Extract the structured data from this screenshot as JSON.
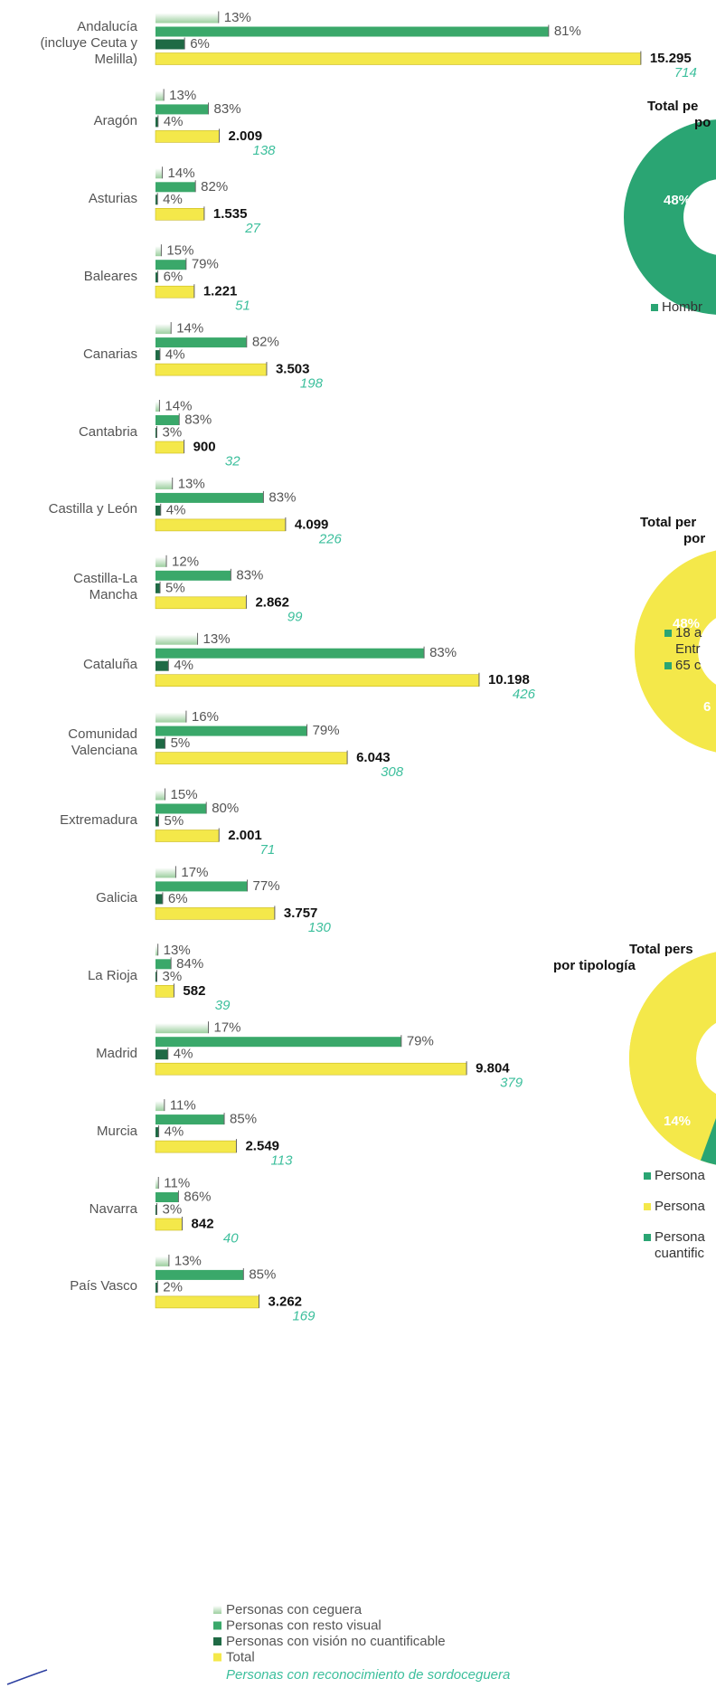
{
  "chart_data": {
    "type": "bar",
    "orientation": "horizontal",
    "categories": [
      "Andalucía\n(incluye Ceuta y\nMelilla)",
      "Aragón",
      "Asturias",
      "Baleares",
      "Canarias",
      "Cantabria",
      "Castilla y León",
      "Castilla-La\nMancha",
      "Cataluña",
      "Comunidad\nValenciana",
      "Extremadura",
      "Galicia",
      "La Rioja",
      "Madrid",
      "Murcia",
      "Navarra",
      "País Vasco"
    ],
    "series": [
      {
        "name": "Personas con ceguera",
        "color": "#c3e3c4",
        "unit": "percent_of_total",
        "values": [
          13,
          13,
          14,
          15,
          14,
          14,
          13,
          12,
          13,
          16,
          15,
          17,
          13,
          17,
          11,
          11,
          13
        ],
        "value_labels": [
          "13%",
          "13%",
          "14%",
          "15%",
          "14%",
          "14%",
          "13%",
          "12%",
          "13%",
          "16%",
          "15%",
          "17%",
          "13%",
          "17%",
          "11%",
          "11%",
          "13%"
        ]
      },
      {
        "name": "Personas con resto visual",
        "color": "#3aa86a",
        "unit": "percent_of_total",
        "values": [
          81,
          83,
          82,
          79,
          82,
          83,
          83,
          83,
          83,
          79,
          80,
          77,
          84,
          79,
          85,
          86,
          85
        ],
        "value_labels": [
          "81%",
          "83%",
          "82%",
          "79%",
          "82%",
          "83%",
          "83%",
          "83%",
          "83%",
          "79%",
          "80%",
          "77%",
          "84%",
          "79%",
          "85%",
          "86%",
          "85%"
        ]
      },
      {
        "name": "Personas con visión no cuantificable",
        "color": "#1f6a45",
        "unit": "percent_of_total",
        "values": [
          6,
          4,
          4,
          6,
          4,
          3,
          4,
          5,
          4,
          5,
          5,
          6,
          3,
          4,
          4,
          3,
          2
        ],
        "value_labels": [
          "6%",
          "4%",
          "4%",
          "6%",
          "4%",
          "3%",
          "4%",
          "5%",
          "4%",
          "5%",
          "5%",
          "6%",
          "3%",
          "4%",
          "4%",
          "3%",
          "2%"
        ]
      },
      {
        "name": "Total",
        "color": "#f4e84a",
        "values": [
          15295,
          2009,
          1535,
          1221,
          3503,
          900,
          4099,
          2862,
          10198,
          6043,
          2001,
          3757,
          582,
          9804,
          2549,
          842,
          3262
        ],
        "value_labels": [
          "15.295",
          "2.009",
          "1.535",
          "1.221",
          "3.503",
          "900",
          "4.099",
          "2.862",
          "10.198",
          "6.043",
          "2.001",
          "3.757",
          "582",
          "9.804",
          "2.549",
          "842",
          "3.262"
        ]
      }
    ],
    "recognized": {
      "name": "Personas con reconocimiento de sordoceguera",
      "color": "#3cbf9c",
      "values": [
        714,
        138,
        27,
        51,
        198,
        32,
        226,
        99,
        426,
        308,
        71,
        130,
        39,
        379,
        113,
        40,
        169
      ]
    },
    "side_panels": [
      {
        "title_lines": [
          "Total pe",
          "po"
        ],
        "labels": [
          "48%"
        ],
        "legend": [
          "Hombr"
        ]
      },
      {
        "title_lines": [
          "Total per",
          "por"
        ],
        "labels": [
          "48%",
          "6"
        ],
        "legend": [
          "18 a",
          "Entr",
          "65 c"
        ]
      },
      {
        "title_lines": [
          "Total pers",
          "por tipología"
        ],
        "labels": [
          "14%"
        ],
        "legend": [
          "Persona",
          "Persona",
          "Persona\ncuantific"
        ]
      }
    ]
  }
}
